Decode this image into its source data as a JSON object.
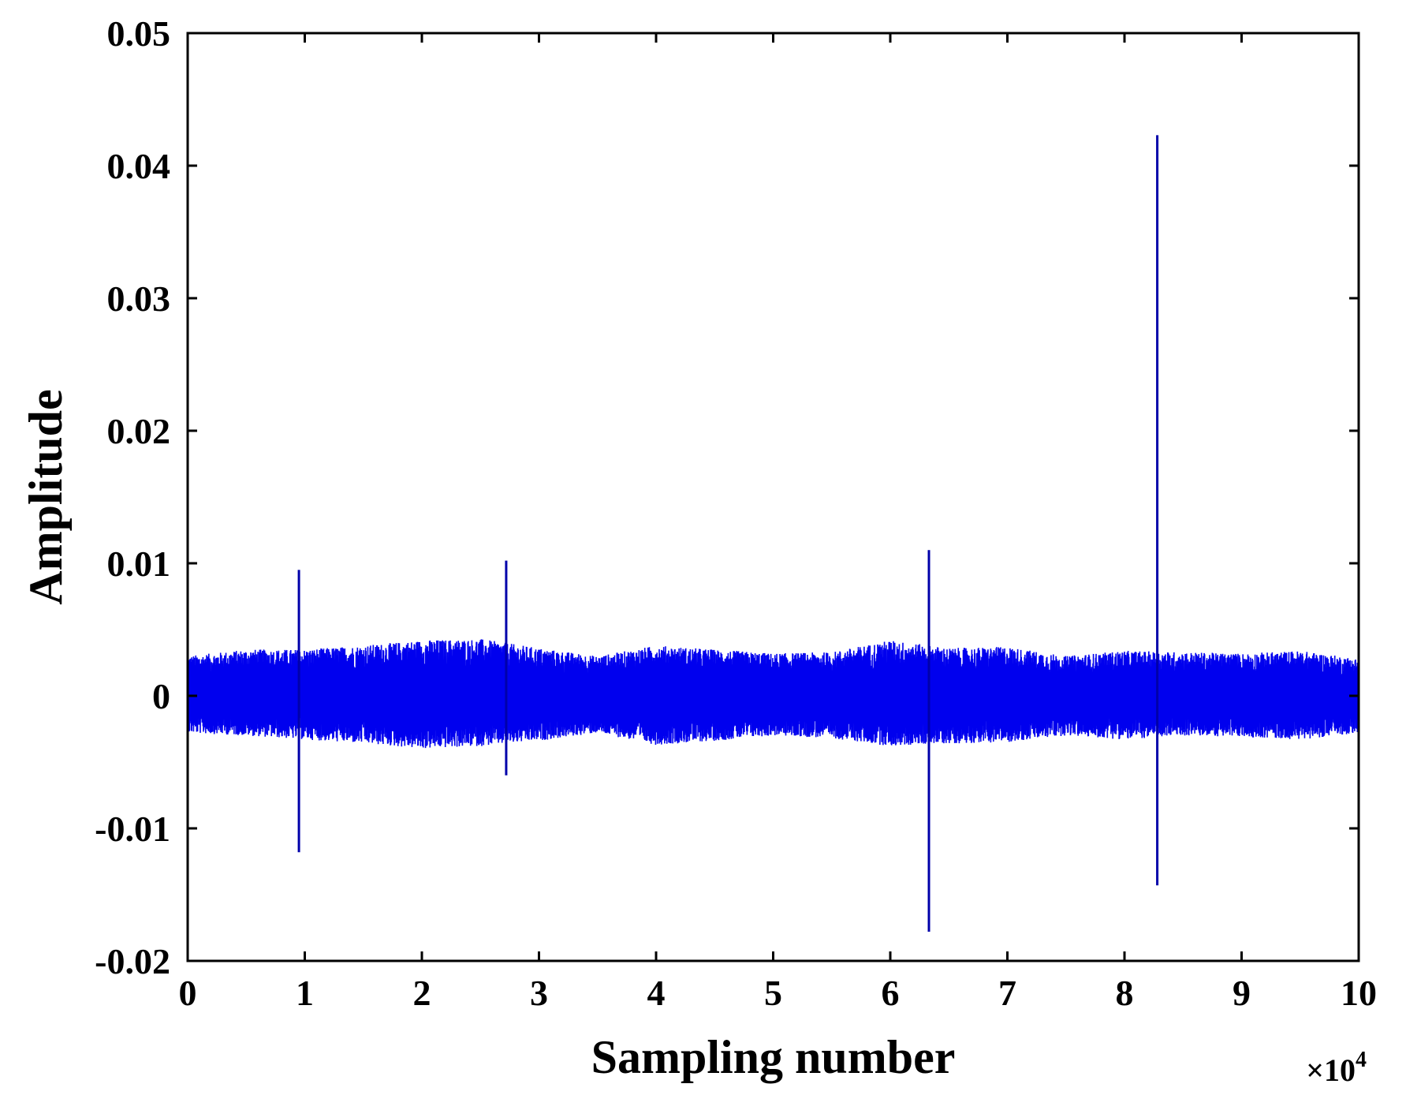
{
  "chart_data": {
    "type": "line",
    "title": "",
    "xlabel": "Sampling number",
    "ylabel": "Amplitude",
    "x_multiplier_label": "×10",
    "x_multiplier_exponent": "4",
    "xlim": [
      0,
      10
    ],
    "ylim": [
      -0.02,
      0.05
    ],
    "x_ticks": [
      0,
      1,
      2,
      3,
      4,
      5,
      6,
      7,
      8,
      9,
      10
    ],
    "x_tick_labels": [
      "0",
      "1",
      "2",
      "3",
      "4",
      "5",
      "6",
      "7",
      "8",
      "9",
      "10"
    ],
    "y_ticks": [
      -0.02,
      -0.01,
      0,
      0.01,
      0.02,
      0.03,
      0.04,
      0.05
    ],
    "y_tick_labels": [
      "-0.02",
      "-0.01",
      "0",
      "0.01",
      "0.02",
      "0.03",
      "0.04",
      "0.05"
    ],
    "grid": false,
    "series": [
      {
        "color": "#0000ee",
        "noise_band": {
          "x": [
            0,
            0.5,
            1,
            1.5,
            2,
            2.5,
            3,
            3.5,
            4,
            4.5,
            5,
            5.5,
            6,
            6.5,
            7,
            7.5,
            8,
            8.5,
            9,
            9.5,
            10
          ],
          "upper": [
            0.003,
            0.0035,
            0.0035,
            0.0038,
            0.0042,
            0.0043,
            0.0036,
            0.003,
            0.0038,
            0.0035,
            0.0032,
            0.0033,
            0.0042,
            0.0036,
            0.0037,
            0.003,
            0.0034,
            0.0033,
            0.0032,
            0.0034,
            0.0028
          ],
          "lower": [
            -0.0028,
            -0.003,
            -0.0033,
            -0.0036,
            -0.004,
            -0.0038,
            -0.0034,
            -0.0028,
            -0.0037,
            -0.0034,
            -0.003,
            -0.0032,
            -0.0038,
            -0.0036,
            -0.0035,
            -0.003,
            -0.0033,
            -0.003,
            -0.0031,
            -0.0033,
            -0.0028
          ]
        },
        "spikes": [
          {
            "x": 0.95,
            "max": 0.0095,
            "min": -0.0118
          },
          {
            "x": 2.72,
            "max": 0.0102,
            "min": -0.006
          },
          {
            "x": 6.33,
            "max": 0.011,
            "min": -0.0178
          },
          {
            "x": 8.28,
            "max": 0.0423,
            "min": -0.0143
          }
        ]
      }
    ]
  }
}
